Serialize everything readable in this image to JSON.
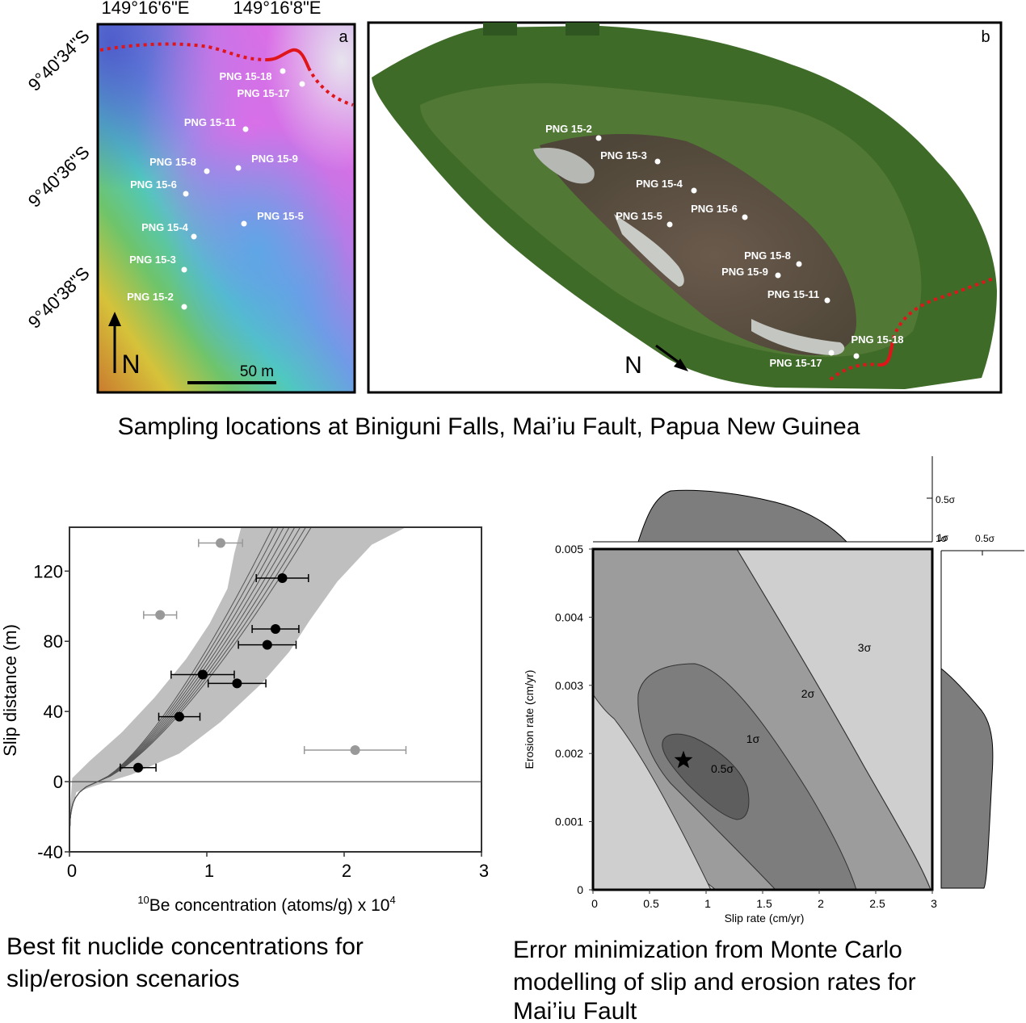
{
  "panels": {
    "map": {
      "letter": "a",
      "lon_labels": [
        "149°16'6\"E",
        "149°16'8\"E"
      ],
      "lat_labels": [
        "9°40'34\"S",
        "9°40'36\"S",
        "9°40'38\"S"
      ],
      "north_label": "N",
      "scale_label": "50 m",
      "samples": [
        "PNG 15-18",
        "PNG 15-17",
        "PNG 15-11",
        "PNG 15-8",
        "PNG 15-9",
        "PNG 15-6",
        "PNG 15-5",
        "PNG 15-4",
        "PNG 15-3",
        "PNG 15-2"
      ]
    },
    "photo": {
      "letter": "b",
      "north_label": "N",
      "samples": [
        "PNG 15-2",
        "PNG 15-3",
        "PNG 15-4",
        "PNG 15-5",
        "PNG 15-6",
        "PNG 15-8",
        "PNG 15-9",
        "PNG 15-11",
        "PNG 15-18",
        "PNG 15-17"
      ]
    },
    "fault_color": "#e0151a"
  },
  "captions": {
    "top": "Sampling locations at Biniguni Falls, Mai’iu Fault, Papua New Guinea",
    "bottom_left": [
      "Best fit nuclide concentrations for",
      "slip/erosion scenarios"
    ],
    "bottom_right": [
      "Error minimization from Monte Carlo",
      "modelling of slip and erosion rates for",
      "Mai’iu Fault"
    ]
  },
  "chart_data": [
    {
      "type": "scatter",
      "xlabel_sup": "10",
      "xlabel_main": "Be concentration (atoms/g) x 10",
      "xlabel_exp": "4",
      "ylabel": "Slip distance (m)",
      "xlim": [
        0,
        3
      ],
      "ylim": [
        -40,
        145
      ],
      "xticks": [
        "0",
        "1",
        "2",
        "3"
      ],
      "yticks": [
        "-40",
        "0",
        "40",
        "80",
        "120"
      ],
      "series": [
        {
          "color": "#000000",
          "points": [
            {
              "x": 0.5,
              "y": 8,
              "xerr": 0.13
            },
            {
              "x": 0.8,
              "y": 37,
              "xerr": 0.15
            },
            {
              "x": 0.97,
              "y": 61,
              "xerr": 0.23
            },
            {
              "x": 1.22,
              "y": 56,
              "xerr": 0.21
            },
            {
              "x": 1.44,
              "y": 78,
              "xerr": 0.21
            },
            {
              "x": 1.5,
              "y": 87,
              "xerr": 0.17
            },
            {
              "x": 1.55,
              "y": 116,
              "xerr": 0.19
            }
          ]
        },
        {
          "color": "#999999",
          "points": [
            {
              "x": 1.1,
              "y": 136,
              "xerr": 0.16
            },
            {
              "x": 0.66,
              "y": 95,
              "xerr": 0.12
            },
            {
              "x": 2.08,
              "y": 18,
              "xerr": 0.37
            }
          ]
        }
      ],
      "envelope_color": "#bfbfbf"
    },
    {
      "type": "contour",
      "xlabel": "Slip rate (cm/yr)",
      "ylabel": "Erosion rate (cm/yr)",
      "xlim": [
        0,
        3
      ],
      "ylim": [
        0,
        0.005
      ],
      "xticks": [
        "0",
        "0.5",
        "1",
        "1.5",
        "2",
        "2.5",
        "3"
      ],
      "yticks": [
        "0",
        "0.001",
        "0.002",
        "0.003",
        "0.004",
        "0.005"
      ],
      "levels": [
        "0.5σ",
        "1σ",
        "2σ",
        "3σ"
      ],
      "level_colors": [
        "#5e5e5e",
        "#7d7d7d",
        "#9c9c9c",
        "#cfcfcf"
      ],
      "best_fit": {
        "x": 0.8,
        "y": 0.0019
      },
      "marginal_top": {
        "labels": [
          "0.5σ",
          "1σ"
        ]
      },
      "marginal_right": {
        "labels": [
          "1σ",
          "0.5σ"
        ]
      }
    }
  ]
}
